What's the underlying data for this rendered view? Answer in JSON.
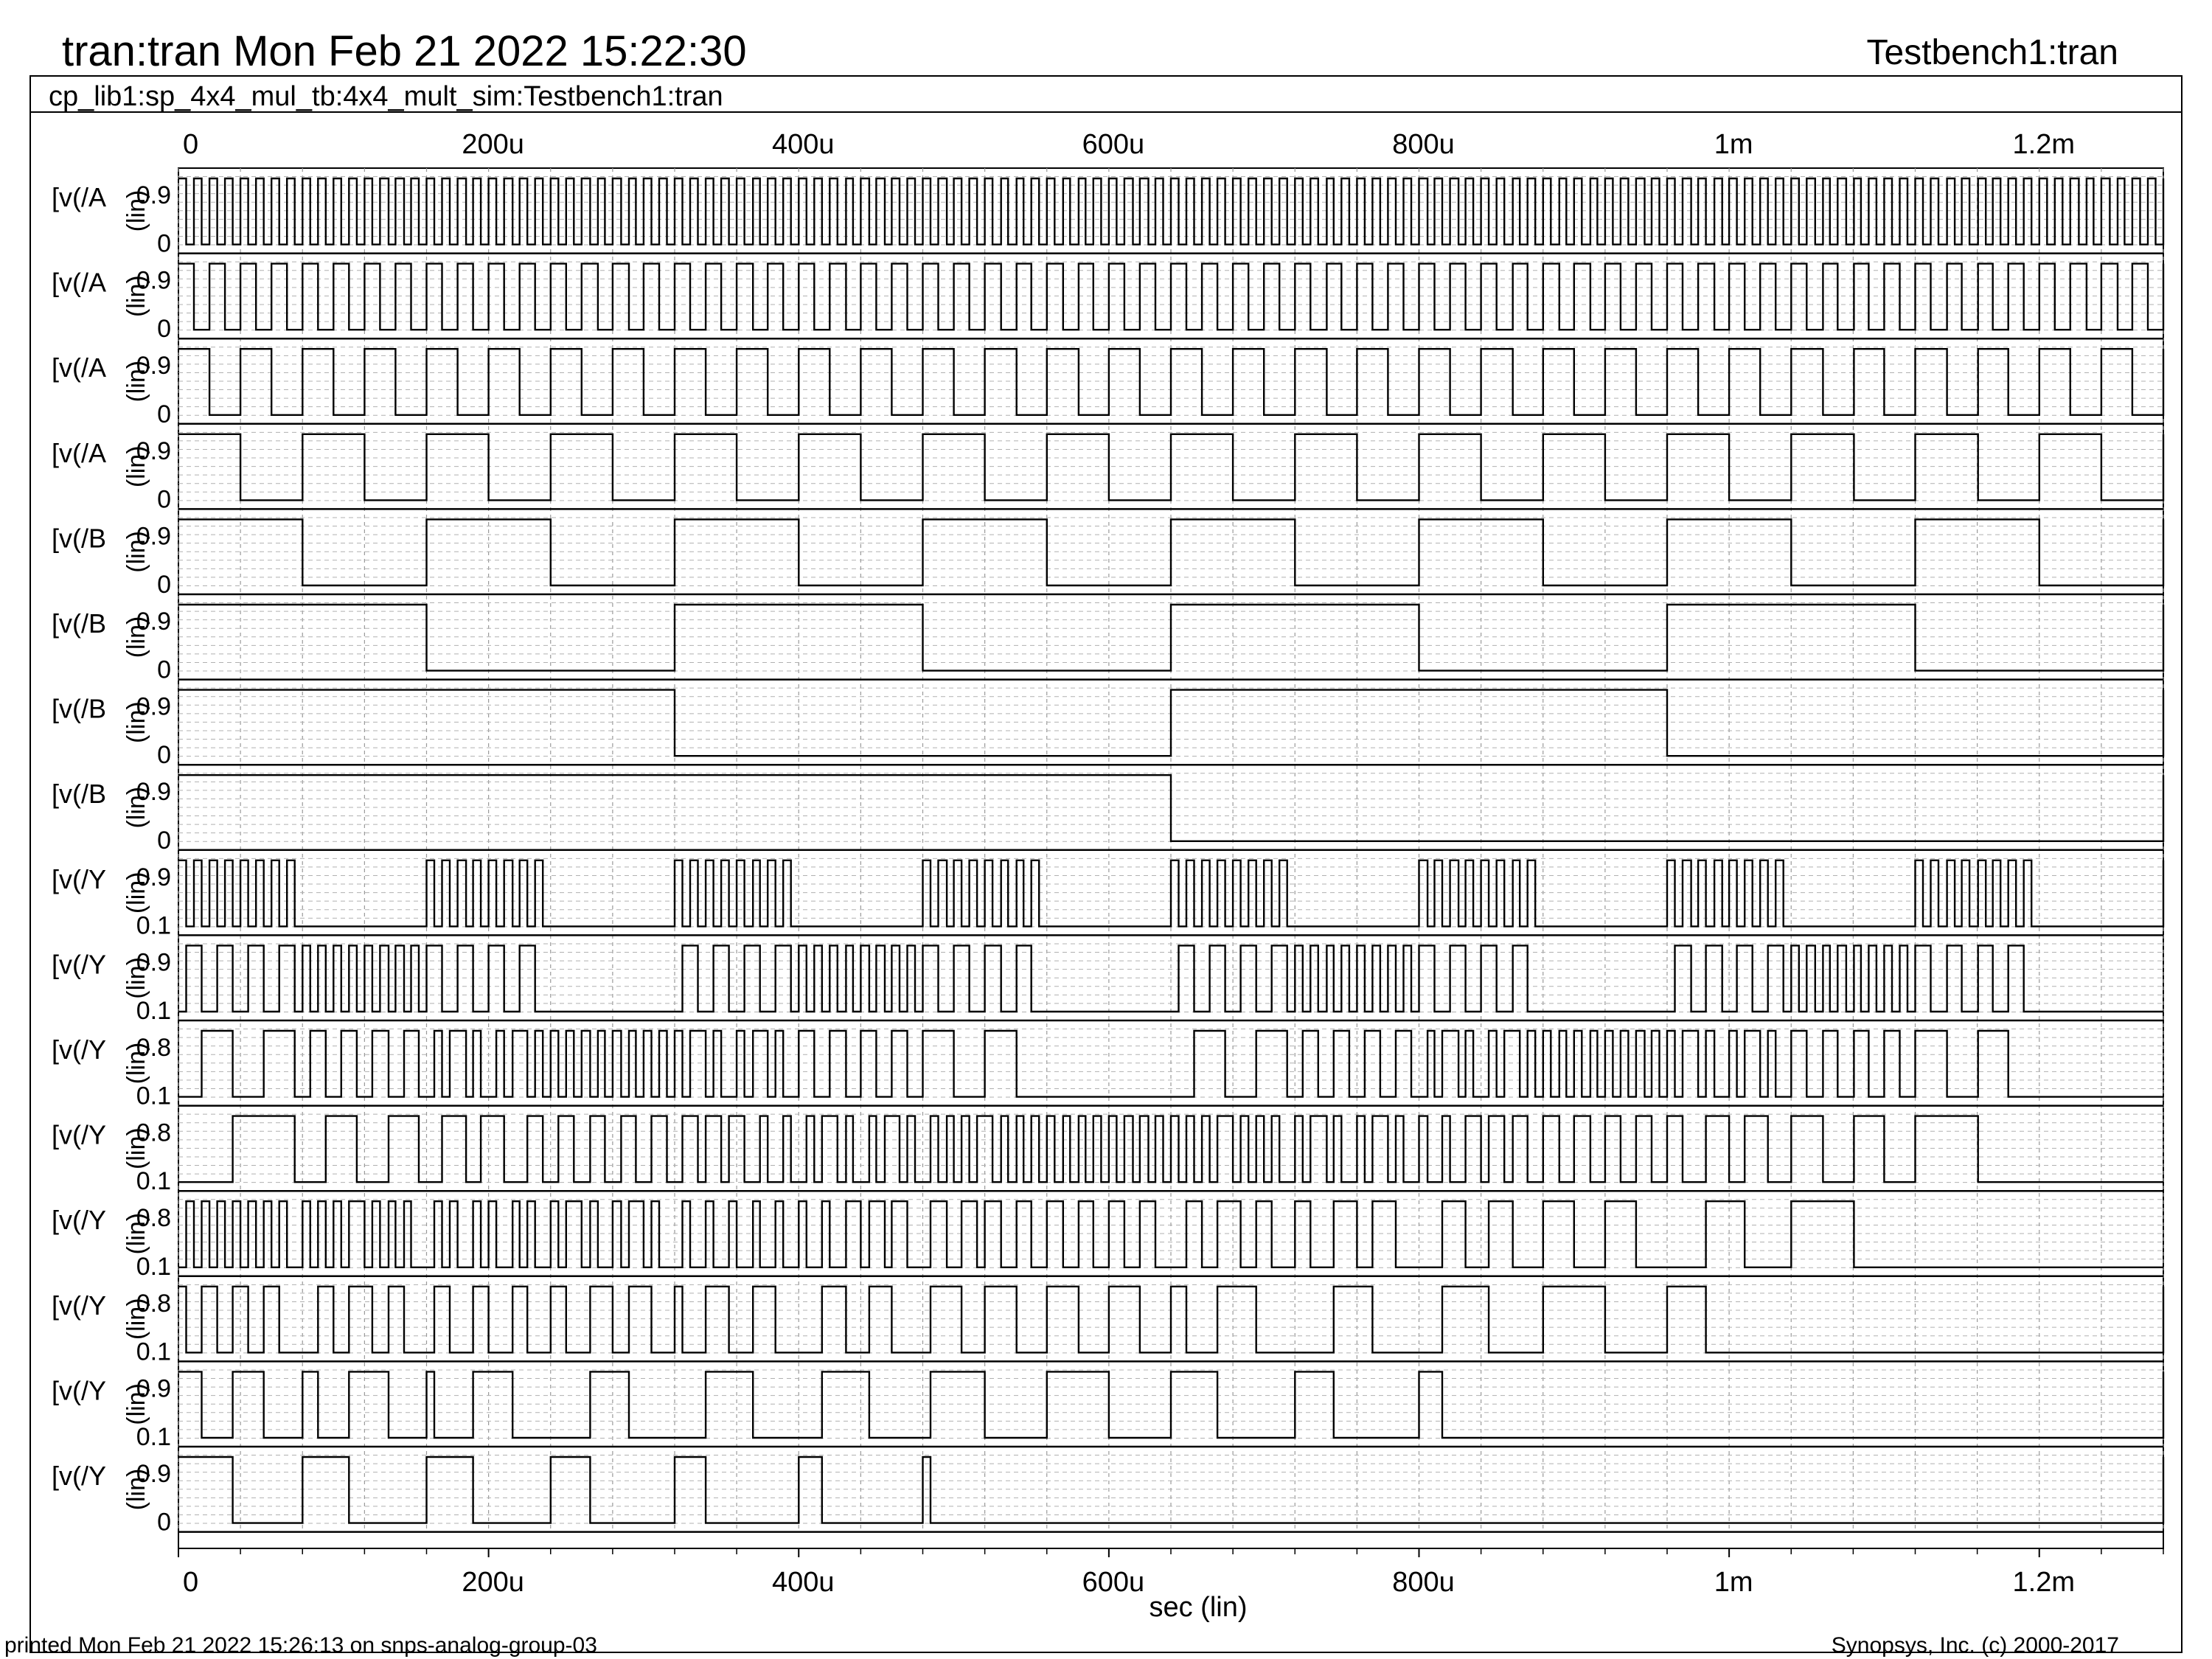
{
  "header": {
    "title": "tran:tran Mon Feb 21 2022 15:22:30",
    "right_title": "Testbench1:tran",
    "subtitle": "cp_lib1:sp_4x4_mul_tb:4x4_mult_sim:Testbench1:tran"
  },
  "footer": {
    "printed": "printed Mon Feb 21 2022 15:26:13 on snps-analog-group-03",
    "copyright": "Synopsys, Inc. (c) 2000-2017"
  },
  "chart_data": {
    "type": "line",
    "title": "tran:tran Mon Feb 21 2022 15:22:30",
    "xlabel": "sec (lin)",
    "x_ticks": [
      0,
      0.0002,
      0.0004,
      0.0006,
      0.0008,
      0.001,
      0.0012
    ],
    "x_tick_labels": [
      "0",
      "200u",
      "400u",
      "600u",
      "800u",
      "1m",
      "1.2m"
    ],
    "xlim": [
      0,
      0.00128
    ],
    "grid": true,
    "panels": [
      {
        "label": "[v(/A",
        "unit": "(lin)",
        "y_hi": "0.9",
        "y_lo": "0",
        "kind": "clock",
        "half_period": 5e-06,
        "start": 1
      },
      {
        "label": "[v(/A",
        "unit": "(lin)",
        "y_hi": "0.9",
        "y_lo": "0",
        "kind": "clock",
        "half_period": 1e-05,
        "start": 1
      },
      {
        "label": "[v(/A",
        "unit": "(lin)",
        "y_hi": "0.9",
        "y_lo": "0",
        "kind": "clock",
        "half_period": 2e-05,
        "start": 1
      },
      {
        "label": "[v(/A",
        "unit": "(lin)",
        "y_hi": "0.9",
        "y_lo": "0",
        "kind": "clock",
        "half_period": 4e-05,
        "start": 1
      },
      {
        "label": "[v(/B",
        "unit": "(lin)",
        "y_hi": "0.9",
        "y_lo": "0",
        "kind": "clock",
        "half_period": 8e-05,
        "start": 1
      },
      {
        "label": "[v(/B",
        "unit": "(lin)",
        "y_hi": "0.9",
        "y_lo": "0",
        "kind": "clock",
        "half_period": 0.00016,
        "start": 1
      },
      {
        "label": "[v(/B",
        "unit": "(lin)",
        "y_hi": "0.9",
        "y_lo": "0",
        "kind": "clock",
        "half_period": 0.00032,
        "start": 1
      },
      {
        "label": "[v(/B",
        "unit": "(lin)",
        "y_hi": "0.9",
        "y_lo": "0",
        "kind": "clock",
        "half_period": 0.00064,
        "start": 1
      },
      {
        "label": "[v(/Y",
        "unit": "(lin)",
        "y_hi": "0.9",
        "y_lo": "0.1",
        "kind": "product",
        "bit": 0
      },
      {
        "label": "[v(/Y",
        "unit": "(lin)",
        "y_hi": "0.9",
        "y_lo": "0.1",
        "kind": "product",
        "bit": 1
      },
      {
        "label": "[v(/Y",
        "unit": "(lin)",
        "y_hi": "0.8",
        "y_lo": "0.1",
        "kind": "product",
        "bit": 2
      },
      {
        "label": "[v(/Y",
        "unit": "(lin)",
        "y_hi": "0.8",
        "y_lo": "0.1",
        "kind": "product",
        "bit": 3
      },
      {
        "label": "[v(/Y",
        "unit": "(lin)",
        "y_hi": "0.8",
        "y_lo": "0.1",
        "kind": "product",
        "bit": 4
      },
      {
        "label": "[v(/Y",
        "unit": "(lin)",
        "y_hi": "0.8",
        "y_lo": "0.1",
        "kind": "product",
        "bit": 5
      },
      {
        "label": "[v(/Y",
        "unit": "(lin)",
        "y_hi": "0.9",
        "y_lo": "0.1",
        "kind": "product",
        "bit": 6
      },
      {
        "label": "[v(/Y",
        "unit": "(lin)",
        "y_hi": "0.9",
        "y_lo": "0",
        "kind": "product",
        "bit": 7
      }
    ]
  }
}
